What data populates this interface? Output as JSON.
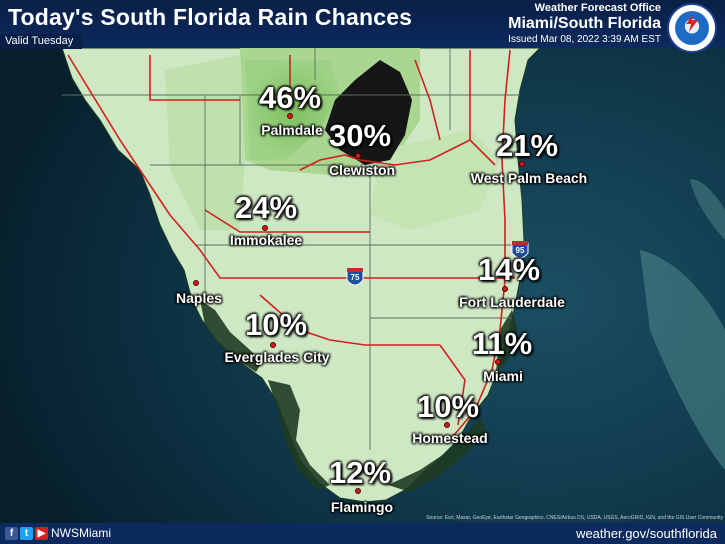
{
  "header": {
    "title": "Today's South Florida Rain Chances",
    "valid": "Valid Tuesday",
    "office_line1": "Weather Forecast Office",
    "office_line2": "Miami/South Florida",
    "issued": "Issued Mar 08, 2022 3:39 AM EST",
    "logo_name": "nws-logo"
  },
  "locations": [
    {
      "id": "palmdale",
      "name": "Palmdale",
      "pct": "46%"
    },
    {
      "id": "clewiston",
      "name": "Clewiston",
      "pct": "30%"
    },
    {
      "id": "west-palm-beach",
      "name": "West Palm Beach",
      "pct": "21%"
    },
    {
      "id": "immokalee",
      "name": "Immokalee",
      "pct": "24%"
    },
    {
      "id": "naples",
      "name": "Naples",
      "pct": ""
    },
    {
      "id": "fort-lauderdale",
      "name": "Fort Lauderdale",
      "pct": "14%"
    },
    {
      "id": "everglades-city",
      "name": "Everglades City",
      "pct": "10%"
    },
    {
      "id": "miami",
      "name": "Miami",
      "pct": "11%"
    },
    {
      "id": "homestead",
      "name": "Homestead",
      "pct": "10%"
    },
    {
      "id": "flamingo",
      "name": "Flamingo",
      "pct": "12%"
    }
  ],
  "highways": {
    "i75": "75",
    "i95": "95"
  },
  "footer": {
    "handle": "NWSMiami",
    "url": "weather.gov/southflorida",
    "credit": "Source: Esri, Maxar, GeoEye, Earthstar Geographics, CNES/Airbus DS, USDA, USGS, AeroGRID, IGN, and the GIS User Community"
  },
  "colors": {
    "header_bg": "#0c2a5e",
    "ocean": "#0b2a3a",
    "land_low": "#cfe8c4",
    "land_mid": "#b7dba4",
    "land_high": "#86c46a",
    "lake": "#1a1a1a",
    "roads": "#d12020",
    "dot": "#d11a1a"
  }
}
